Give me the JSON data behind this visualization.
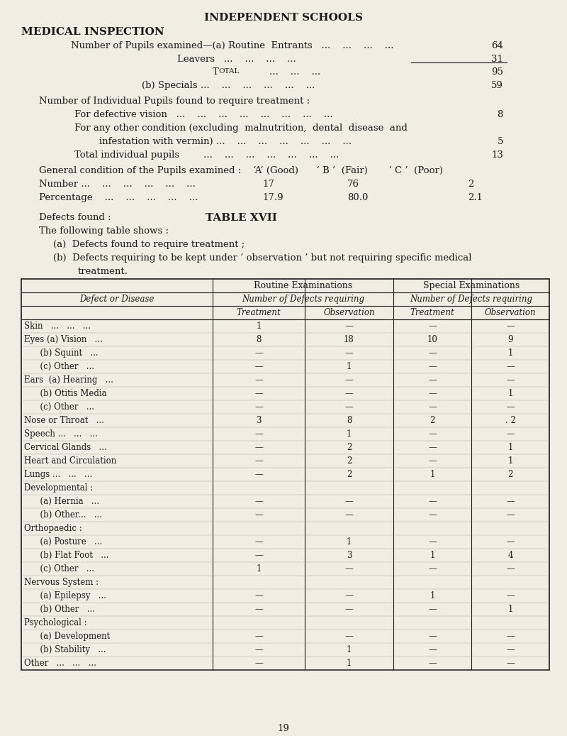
{
  "bg_color": "#f2ede2",
  "text_color": "#1a1a1a",
  "page_number": "19",
  "figsize": [
    8.0,
    10.37
  ],
  "dpi": 100,
  "table_rows": [
    [
      "Skin   ...   ...   ...",
      "1",
      "—",
      "—",
      "—"
    ],
    [
      "Eyes (a) Vision   ...",
      "8",
      "18",
      "10",
      "9"
    ],
    [
      "      (b) Squint   ...",
      "—",
      "—",
      "—",
      "1"
    ],
    [
      "      (c) Other   ...",
      "—",
      "1",
      "—",
      "—"
    ],
    [
      "Ears  (a) Hearing   ...",
      "—",
      "—",
      "—",
      "—"
    ],
    [
      "      (b) Otitis Media",
      "—",
      "—",
      "—",
      "1"
    ],
    [
      "      (c) Other   ...",
      "—",
      "—",
      "—",
      "—"
    ],
    [
      "Nose or Throat   ...",
      "3",
      "8",
      "2",
      ". 2"
    ],
    [
      "Speech ...   ...   ...",
      "—",
      "1",
      "—",
      "—"
    ],
    [
      "Cervical Glands   ...",
      "—",
      "2",
      "—",
      "1"
    ],
    [
      "Heart and Circulation",
      "—",
      "2",
      "—",
      "1"
    ],
    [
      "Lungs ...   ...   ...",
      "—",
      "2",
      "1",
      "2"
    ],
    [
      "Developmental :",
      "",
      "",
      "",
      ""
    ],
    [
      "      (a) Hernia   ...",
      "—",
      "—",
      "—",
      "—"
    ],
    [
      "      (b) Other...   ...",
      "—",
      "—",
      "—",
      "—"
    ],
    [
      "Orthopaedic :",
      "",
      "",
      "",
      ""
    ],
    [
      "      (a) Posture   ...",
      "—",
      "1",
      "—",
      "—"
    ],
    [
      "      (b) Flat Foot   ...",
      "—",
      "3",
      "1",
      "4"
    ],
    [
      "      (c) Other   ...",
      "1",
      "—",
      "—",
      "—"
    ],
    [
      "Nervous System :",
      "",
      "",
      "",
      ""
    ],
    [
      "      (a) Epilepsy   ...",
      "—",
      "—",
      "1",
      "—"
    ],
    [
      "      (b) Other   ...",
      "—",
      "—",
      "—",
      "1"
    ],
    [
      "Psychological :",
      "",
      "",
      "",
      ""
    ],
    [
      "      (a) Development",
      "—",
      "—",
      "—",
      "—"
    ],
    [
      "      (b) Stability   ...",
      "—",
      "1",
      "—",
      "—"
    ],
    [
      "Other   ...   ...   ...",
      "—",
      "1",
      "—",
      "—"
    ]
  ]
}
